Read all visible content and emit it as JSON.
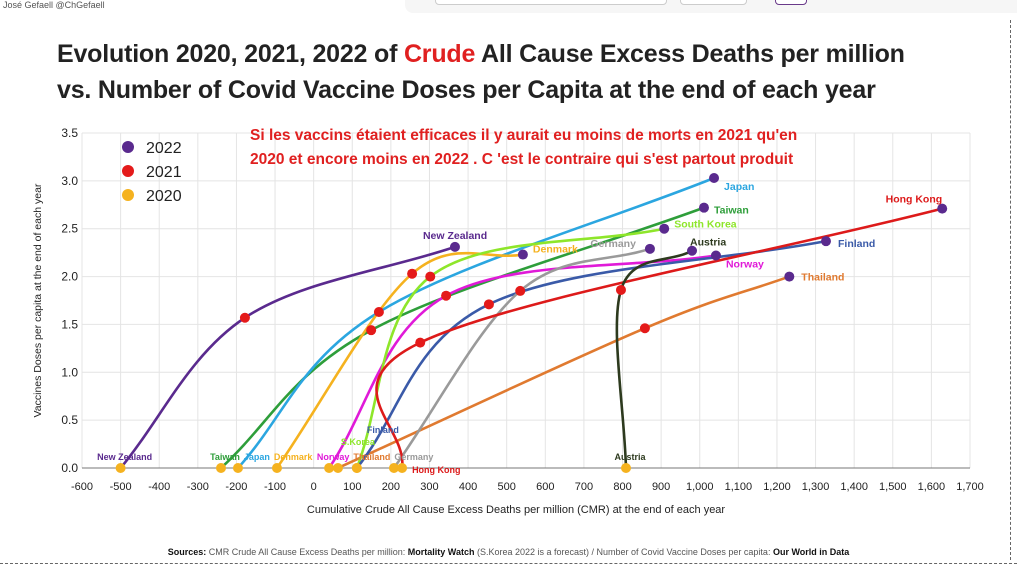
{
  "credit": "José Gefaell  @ChGefaell",
  "title_line1_a": "Evolution 2020, 2021, 2022 of ",
  "title_line1_b": "Crude",
  "title_line1_c": " All Cause Excess Deaths per million",
  "title_line2": "vs. Number of Covid Vaccine Doses per Capita at the end of each year",
  "note_line1": "Si les vaccins étaient efficaces  il y aurait eu moins de morts en 2021 qu'en",
  "note_line2": "2020 et encore moins en 2022 . C 'est le contraire qui s'est partout produit",
  "sources": {
    "label": "Sources:",
    "text1": " CMR Crude All Cause Excess Deaths per million: ",
    "src1": "Mortality Watch",
    "text2": "  (S.Korea 2022 is a forecast) /  Number of Covid Vaccine Doses per capita: ",
    "src2": "Our World in Data"
  },
  "chart_data": {
    "type": "line",
    "title": "Evolution 2020, 2021, 2022 of Crude All Cause Excess Deaths per million vs. Number of Covid Vaccine Doses per Capita at the end of each year",
    "xlabel": "Cumulative Crude All Cause Excess Deaths per million (CMR) at the end of each year",
    "ylabel": "Vaccines Doses per capita at the end of each year",
    "xlim": [
      -600,
      1700
    ],
    "ylim": [
      0,
      3.5
    ],
    "xticks": [
      "-600",
      "-500",
      "-400",
      "-300",
      "-200",
      "-100",
      "0",
      "100",
      "200",
      "300",
      "400",
      "500",
      "600",
      "700",
      "800",
      "900",
      "1,000",
      "1,100",
      "1,200",
      "1,300",
      "1,400",
      "1,500",
      "1,600",
      "1,700"
    ],
    "yticks": [
      "0.0",
      "0.5",
      "1.0",
      "1.5",
      "2.0",
      "2.5",
      "3.0",
      "3.5"
    ],
    "grid": true,
    "legend_placement": "top-left",
    "legend": [
      {
        "label": "2022",
        "color": "#5a2a8e"
      },
      {
        "label": "2021",
        "color": "#e41a1a"
      },
      {
        "label": "2020",
        "color": "#f5b21f"
      }
    ],
    "series": [
      {
        "name": "New Zealand",
        "label_2020": "New Zealand",
        "color": "#5a2a8e",
        "points": [
          [
            -500,
            0
          ],
          [
            -178,
            1.57
          ],
          [
            366,
            2.31
          ]
        ]
      },
      {
        "name": "Taiwan",
        "label_2020": "Taiwan",
        "color": "#2e9e3a",
        "points": [
          [
            -240,
            0
          ],
          [
            149,
            1.44
          ],
          [
            1011,
            2.72
          ]
        ]
      },
      {
        "name": "Japan",
        "label_2020": "Japan",
        "color": "#2ba6e0",
        "points": [
          [
            -196,
            0
          ],
          [
            169,
            1.63
          ],
          [
            1037,
            3.03
          ]
        ]
      },
      {
        "name": "Denmark",
        "label_2020": "Denmark",
        "color": "#f5b21f",
        "points": [
          [
            -95,
            0
          ],
          [
            255,
            2.03
          ],
          [
            542,
            2.23
          ]
        ]
      },
      {
        "name": "Norway",
        "label_2020": "Norway",
        "color": "#e01ad8",
        "points": [
          [
            40,
            0
          ],
          [
            343,
            1.8
          ],
          [
            1042,
            2.22
          ]
        ]
      },
      {
        "name": "Thailand",
        "label_2020": "Thailand",
        "color": "#e07a30",
        "points": [
          [
            63,
            0
          ],
          [
            858,
            1.46
          ],
          [
            1232,
            2.0
          ]
        ]
      },
      {
        "name": "South Korea",
        "label_2020": "S.Korea",
        "color": "#8ee62a",
        "points": [
          [
            112,
            0
          ],
          [
            302,
            2.0
          ],
          [
            908,
            2.5
          ]
        ]
      },
      {
        "name": "Finland",
        "label_2020": "Finland",
        "color": "#3a5aa8",
        "points": [
          [
            112,
            0
          ],
          [
            454,
            1.71
          ],
          [
            1327,
            2.37
          ]
        ]
      },
      {
        "name": "Germany",
        "label_2020": "Germany",
        "color": "#9a9a9a",
        "points": [
          [
            208,
            0
          ],
          [
            535,
            1.85
          ],
          [
            871,
            2.29
          ]
        ]
      },
      {
        "name": "Hong Kong",
        "label_2020": "Hong Kong",
        "color": "#dd1a1a",
        "points": [
          [
            229,
            0
          ],
          [
            276,
            1.31
          ],
          [
            1628,
            2.71
          ]
        ]
      },
      {
        "name": "Austria",
        "label_2020": "Austria",
        "color": "#2d3a1e",
        "points": [
          [
            809,
            0
          ],
          [
            796,
            1.86
          ],
          [
            980,
            2.27
          ]
        ]
      }
    ]
  }
}
